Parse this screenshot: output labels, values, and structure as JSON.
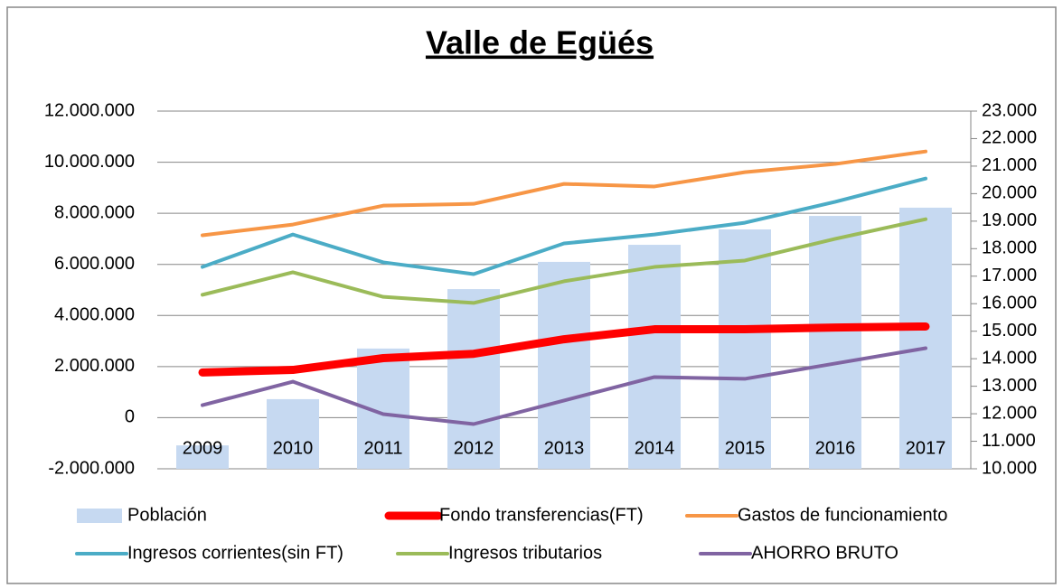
{
  "chart_data": {
    "type": "combo",
    "title": "Valle de Egüés",
    "categories": [
      "2009",
      "2010",
      "2011",
      "2012",
      "2013",
      "2014",
      "2015",
      "2016",
      "2017"
    ],
    "series": [
      {
        "name": "Población",
        "type": "bar",
        "axis": "y2",
        "color": "#c6d9f1",
        "values": [
          10850,
          12530,
          14370,
          16530,
          17520,
          18140,
          18700,
          19190,
          19490
        ]
      },
      {
        "name": "Fondo transferencias(FT)",
        "type": "line",
        "color": "#ff0000",
        "values": [
          1770000,
          1870000,
          2330000,
          2500000,
          3070000,
          3460000,
          3460000,
          3530000,
          3570000
        ]
      },
      {
        "name": "Gastos de funcionamiento",
        "type": "line",
        "color": "#f79646",
        "values": [
          7140000,
          7560000,
          8300000,
          8370000,
          9150000,
          9050000,
          9610000,
          9930000,
          10420000
        ]
      },
      {
        "name": "Ingresos corrientes(sin FT)",
        "type": "line",
        "color": "#4bacc6",
        "values": [
          5900000,
          7170000,
          6080000,
          5620000,
          6820000,
          7170000,
          7630000,
          8450000,
          9360000
        ]
      },
      {
        "name": "Ingresos tributarios",
        "type": "line",
        "color": "#9bbb59",
        "values": [
          4810000,
          5690000,
          4730000,
          4490000,
          5340000,
          5900000,
          6150000,
          7000000,
          7770000
        ]
      },
      {
        "name": "AHORRO BRUTO",
        "type": "line",
        "color": "#8064a2",
        "values": [
          490000,
          1410000,
          140000,
          -250000,
          670000,
          1590000,
          1520000,
          2120000,
          2720000
        ]
      }
    ],
    "ylim": [
      -2000000,
      12000000
    ],
    "yticks": [
      {
        "value": -2000000,
        "label": "-2.000.000"
      },
      0,
      {
        "value": 2000000,
        "label": "2.000.000"
      },
      {
        "value": 4000000,
        "label": "4.000.000"
      },
      {
        "value": 6000000,
        "label": "6.000.000"
      },
      {
        "value": 8000000,
        "label": "8.000.000"
      },
      {
        "value": 10000000,
        "label": "10.000.000"
      },
      {
        "value": 12000000,
        "label": "12.000.000"
      }
    ],
    "y2lim": [
      10000,
      23000
    ],
    "y2ticks": [
      {
        "value": 10000,
        "label": "10.000"
      },
      {
        "value": 11000,
        "label": "11.000"
      },
      {
        "value": 12000,
        "label": "12.000"
      },
      {
        "value": 13000,
        "label": "13.000"
      },
      {
        "value": 14000,
        "label": "14.000"
      },
      {
        "value": 15000,
        "label": "15.000"
      },
      {
        "value": 16000,
        "label": "16.000"
      },
      {
        "value": 17000,
        "label": "17.000"
      },
      {
        "value": 18000,
        "label": "18.000"
      },
      {
        "value": 19000,
        "label": "19.000"
      },
      {
        "value": 20000,
        "label": "20.000"
      },
      {
        "value": 21000,
        "label": "21.000"
      },
      {
        "value": 22000,
        "label": "22.000"
      },
      {
        "value": 23000,
        "label": "23.000"
      }
    ],
    "grid": true,
    "legend": "bottom"
  }
}
